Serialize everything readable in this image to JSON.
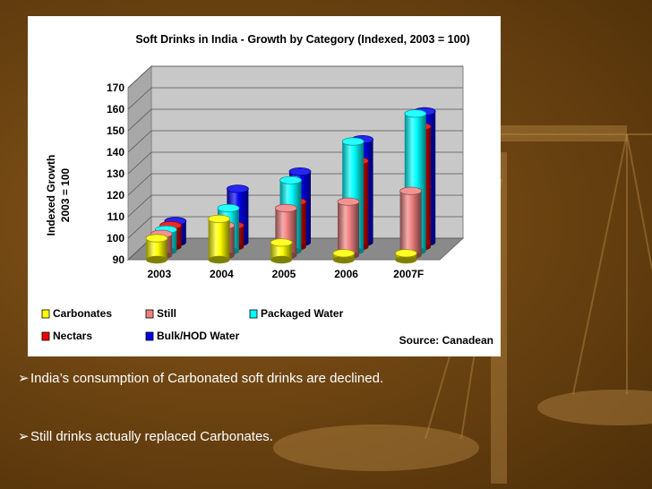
{
  "slide": {
    "bullets": [
      "India’s consumption of Carbonated soft drinks are declined.",
      "Still drinks actually replaced Carbonates."
    ],
    "bullet_marker_icon": "arrow-bullet-icon",
    "background_decor_icon": "balance-scale-icon"
  },
  "chart_data": {
    "type": "bar",
    "title": "Soft Drinks in India - Growth by Category (Indexed, 2003 = 100)",
    "ylabel": "Indexed Growth",
    "ylabel_sub": "2003 = 100",
    "xlabel": "",
    "ylim": [
      90,
      170
    ],
    "yticks": [
      90,
      100,
      110,
      120,
      130,
      140,
      150,
      160,
      170
    ],
    "categories": [
      "2003",
      "2004",
      "2005",
      "2006",
      "2007F"
    ],
    "series": [
      {
        "name": "Carbonates",
        "color": "#ffff00",
        "values": [
          100,
          109,
          98,
          93,
          93
        ]
      },
      {
        "name": "Still",
        "color": "#f08080",
        "values": [
          100,
          104,
          112,
          115,
          120
        ]
      },
      {
        "name": "Packaged Water",
        "color": "#00ffff",
        "values": [
          100,
          110,
          123,
          141,
          154
        ]
      },
      {
        "name": "Nectars",
        "color": "#ee0000",
        "values": [
          100,
          100,
          111,
          130,
          146
        ]
      },
      {
        "name": "Bulk/HOD Water",
        "color": "#0000ee",
        "values": [
          100,
          115,
          123,
          138,
          151
        ]
      }
    ],
    "source": "Source: Canadean",
    "legend_position": "bottom",
    "grid": true,
    "style": "3d-cylinder"
  }
}
